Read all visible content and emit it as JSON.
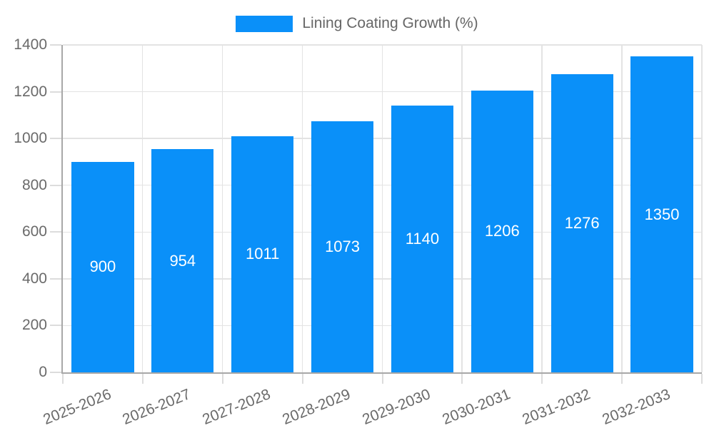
{
  "legend": {
    "label": "Lining Coating Growth (%)"
  },
  "colors": {
    "bar": "#0a90f9",
    "bar_value_text": "#ffffff",
    "axis_text": "#6a6a6a",
    "legend_text": "#666666",
    "grid_line": "#e3e3e3",
    "axis_line": "#a8a8a8",
    "background": "#ffffff"
  },
  "chart_data": {
    "type": "bar",
    "title": "",
    "xlabel": "",
    "ylabel": "",
    "legend": "Lining Coating Growth (%)",
    "legend_position": "top-center",
    "grid": true,
    "categories": [
      "2025-2026",
      "2026-2027",
      "2027-2028",
      "2028-2029",
      "2029-2030",
      "2030-2031",
      "2031-2032",
      "2032-2033"
    ],
    "values": [
      900,
      954,
      1011,
      1073,
      1140,
      1206,
      1276,
      1350
    ],
    "value_labels_position": "inside-center",
    "ylim": [
      0,
      1400
    ],
    "ytick_step": 200,
    "yticks": [
      0,
      200,
      400,
      600,
      800,
      1000,
      1200,
      1400
    ],
    "xtick_rotation_deg": -22
  }
}
